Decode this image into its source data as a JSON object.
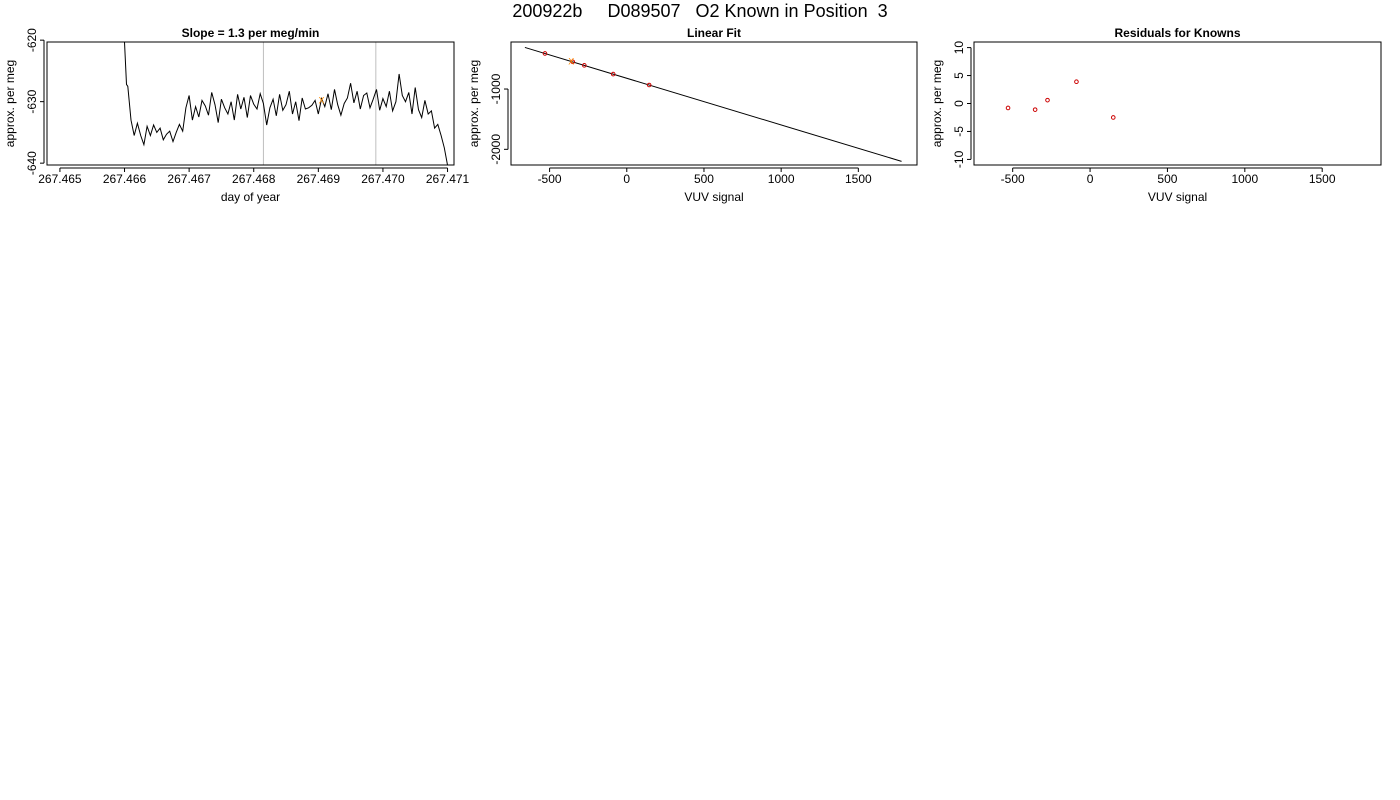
{
  "title": "200922b     D089507   O2 Known in Position  3",
  "colors": {
    "line": "#000000",
    "grid": "#bebebe",
    "point": "#cc0000",
    "highlight": "#ff8c00"
  },
  "chart_data": [
    {
      "id": "timeseries",
      "type": "line",
      "title": "Slope =  1.3  per meg/min",
      "xlabel": "day of year",
      "ylabel": "approx. per meg",
      "xlim": [
        267.4648,
        267.4711
      ],
      "ylim": [
        -640.3,
        -620.3
      ],
      "xticks": [
        267.465,
        267.466,
        267.467,
        267.468,
        267.469,
        267.47,
        267.471
      ],
      "xtick_labels": [
        "267.465",
        "267.466",
        "267.467",
        "267.468",
        "267.469",
        "267.470",
        "267.471"
      ],
      "yticks": [
        -640,
        -630,
        -620
      ],
      "ytick_labels": [
        "-640",
        "-630",
        "-620"
      ],
      "vlines": [
        267.46815,
        267.46989
      ],
      "highlight_point": {
        "x": 267.46905,
        "y": -629.8,
        "label": "X"
      },
      "x": [
        267.46605,
        267.4661,
        267.46615,
        267.4662,
        267.46625,
        267.4663,
        267.46635,
        267.4664,
        267.46645,
        267.4665,
        267.46655,
        267.4666,
        267.46665,
        267.4667,
        267.46675,
        267.4668,
        267.46685,
        267.4669,
        267.46695,
        267.467,
        267.46705,
        267.4671,
        267.46715,
        267.4672,
        267.46725,
        267.4673,
        267.46735,
        267.4674,
        267.46745,
        267.4675,
        267.46755,
        267.4676,
        267.46765,
        267.4677,
        267.46775,
        267.4678,
        267.46785,
        267.4679,
        267.46795,
        267.468,
        267.46805,
        267.4681,
        267.46815,
        267.4682,
        267.46825,
        267.4683,
        267.46835,
        267.4684,
        267.46845,
        267.4685,
        267.46855,
        267.4686,
        267.46865,
        267.4687,
        267.46875,
        267.4688,
        267.46885,
        267.4689,
        267.46895,
        267.469,
        267.46905,
        267.4691,
        267.46915,
        267.4692,
        267.46925,
        267.4693,
        267.46935,
        267.4694,
        267.46945,
        267.4695,
        267.46955,
        267.4696,
        267.46965,
        267.4697,
        267.46975,
        267.4698,
        267.46985,
        267.4699,
        267.46995,
        267.47,
        267.47005,
        267.4701,
        267.47015,
        267.4702,
        267.47025,
        267.4703,
        267.47035,
        267.4704,
        267.47045,
        267.4705,
        267.47055,
        267.4706,
        267.47065,
        267.4707,
        267.47075,
        267.4708,
        267.47085,
        267.4709,
        267.47095,
        267.471
      ],
      "y": [
        -627.5,
        -633,
        -635.5,
        -633.5,
        -635.5,
        -637,
        -634,
        -635.5,
        -633.8,
        -635,
        -634.3,
        -636.2,
        -635.3,
        -634.8,
        -636.5,
        -635,
        -633.7,
        -634.8,
        -631,
        -629,
        -633,
        -630.8,
        -632.5,
        -629.8,
        -630.7,
        -632.2,
        -628.5,
        -630.5,
        -633.4,
        -629.6,
        -631,
        -632,
        -630,
        -633,
        -628.8,
        -631.2,
        -629.3,
        -632.6,
        -629,
        -630.4,
        -631.2,
        -628.7,
        -630.3,
        -633.8,
        -631,
        -629.6,
        -632.3,
        -628.8,
        -631.4,
        -630.5,
        -628.3,
        -632,
        -630,
        -633.1,
        -629.4,
        -631.2,
        -631,
        -630.6,
        -629.8,
        -632,
        -629.5,
        -630.8,
        -628.7,
        -631.3,
        -628,
        -630.5,
        -632.2,
        -630.3,
        -629.4,
        -627,
        -630.2,
        -628.3,
        -631.2,
        -629,
        -628.6,
        -631,
        -629.6,
        -628,
        -631.4,
        -629.5,
        -630.8,
        -628.3,
        -631.5,
        -630,
        -625.5,
        -629,
        -630,
        -628.5,
        -632,
        -627.7,
        -631.3,
        -632.6,
        -629.8,
        -632,
        -631.5,
        -634.3,
        -633.7,
        -635.5,
        -637.5,
        -640.3
      ],
      "lead_in": {
        "x": [
          267.466,
          267.46603
        ],
        "y": [
          -620.3,
          -627.2
        ]
      }
    },
    {
      "id": "linear-fit",
      "type": "scatter",
      "title": "Linear Fit",
      "xlabel": "VUV signal",
      "ylabel": "approx. per meg",
      "xlim": [
        -750,
        1880
      ],
      "ylim": [
        -2260,
        -220
      ],
      "xticks": [
        -500,
        0,
        500,
        1000,
        1500
      ],
      "xtick_labels": [
        "-500",
        "0",
        "500",
        "1000",
        "1500"
      ],
      "yticks": [
        -2000,
        -1000
      ],
      "ytick_labels": [
        "-2000",
        "-1000"
      ],
      "fit_line": {
        "x": [
          -660,
          1780
        ],
        "y": [
          -310,
          -2200
        ]
      },
      "points": [
        {
          "x": -530,
          "y": -410
        },
        {
          "x": -350,
          "y": -548
        },
        {
          "x": -275,
          "y": -607
        },
        {
          "x": -88,
          "y": -752
        },
        {
          "x": 145,
          "y": -933
        }
      ],
      "highlight_point": {
        "x": -360,
        "y": -545,
        "label": "X"
      }
    },
    {
      "id": "residuals",
      "type": "scatter",
      "title": "Residuals for Knowns",
      "xlabel": "VUV signal",
      "ylabel": "approx. per meg",
      "xlim": [
        -750,
        1880
      ],
      "ylim": [
        -11,
        11
      ],
      "xticks": [
        -500,
        0,
        500,
        1000,
        1500
      ],
      "xtick_labels": [
        "-500",
        "0",
        "500",
        "1000",
        "1500"
      ],
      "yticks": [
        -10,
        -5,
        0,
        5,
        10
      ],
      "ytick_labels": [
        "-10",
        "-5",
        "0",
        "5",
        "10"
      ],
      "points": [
        {
          "x": -530,
          "y": -0.8
        },
        {
          "x": -355,
          "y": -1.1
        },
        {
          "x": -275,
          "y": 0.6
        },
        {
          "x": -88,
          "y": 3.9
        },
        {
          "x": 150,
          "y": -2.5
        }
      ]
    }
  ]
}
